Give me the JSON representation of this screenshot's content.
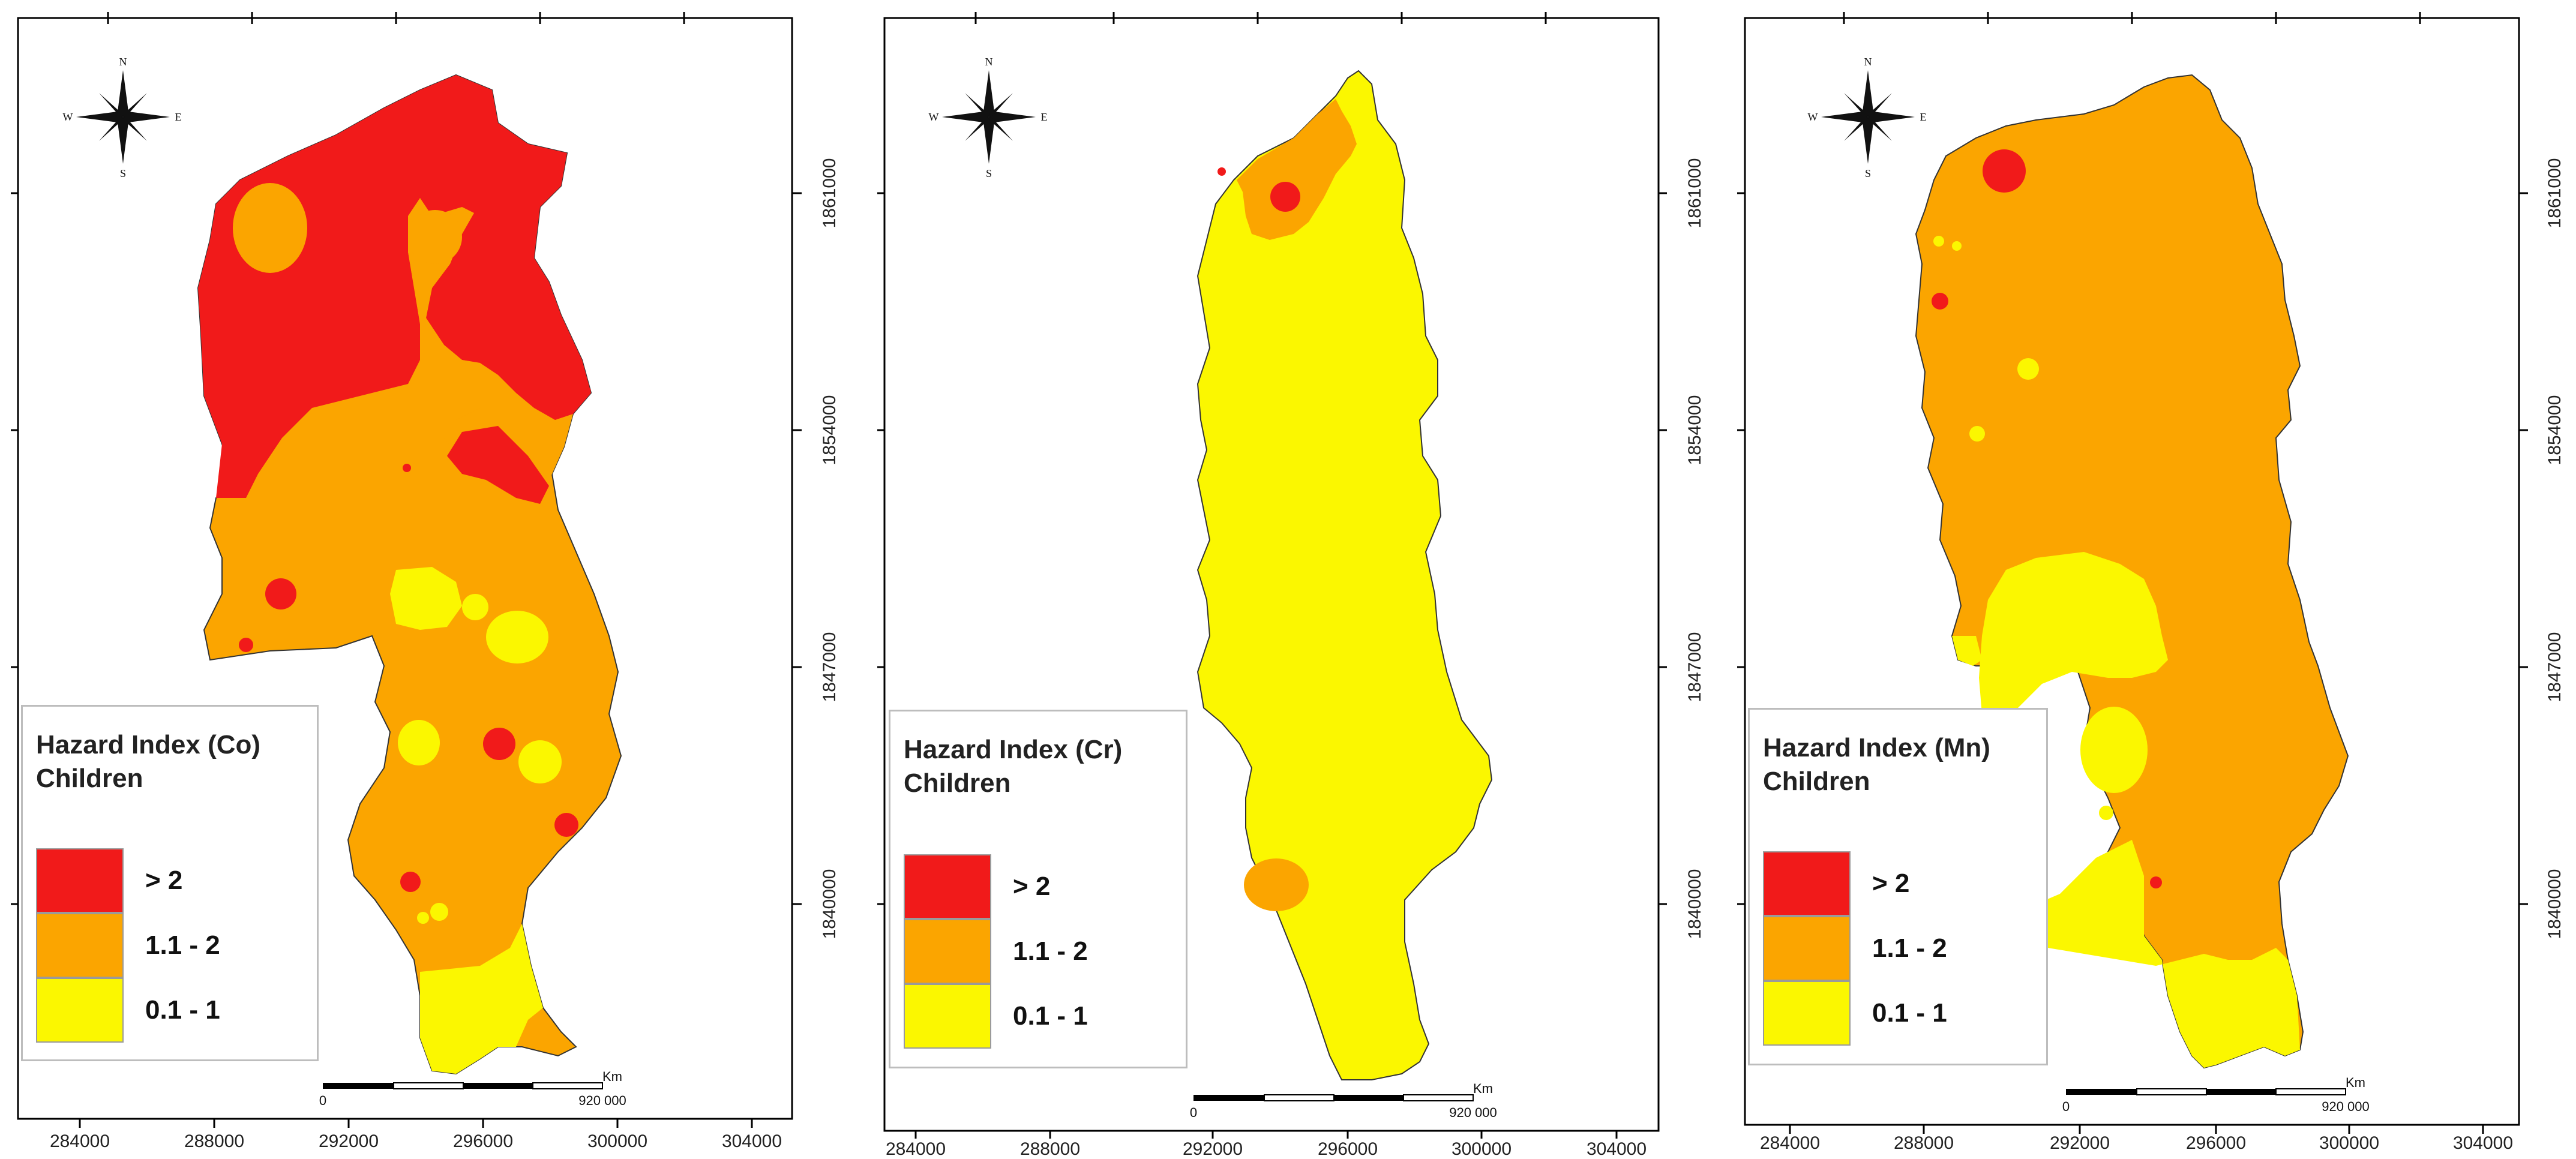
{
  "colors": {
    "high": "#f11a1a",
    "medium": "#fba500",
    "low": "#fbf700"
  },
  "compass": {
    "n": "N",
    "s": "S",
    "e": "E",
    "w": "W"
  },
  "legend": {
    "subtitle": "Children",
    "classes": [
      {
        "label": "> 2",
        "color": "#f11a1a"
      },
      {
        "label": "1.1 - 2",
        "color": "#fba500"
      },
      {
        "label": "0.1 - 1",
        "color": "#fbf700"
      }
    ]
  },
  "axes": {
    "x_ticks": [
      "284000",
      "288000",
      "292000",
      "296000",
      "300000",
      "304000"
    ],
    "y_ticks": [
      "1861000",
      "1854000",
      "1847000",
      "1840000"
    ]
  },
  "scale_bar": {
    "unit": "Km",
    "start": "0",
    "end": "920 000"
  },
  "maps": [
    {
      "element": "Co",
      "title": "Hazard Index (Co)"
    },
    {
      "element": "Cr",
      "title": "Hazard Index (Cr)"
    },
    {
      "element": "Mn",
      "title": "Hazard Index (Mn)"
    }
  ]
}
